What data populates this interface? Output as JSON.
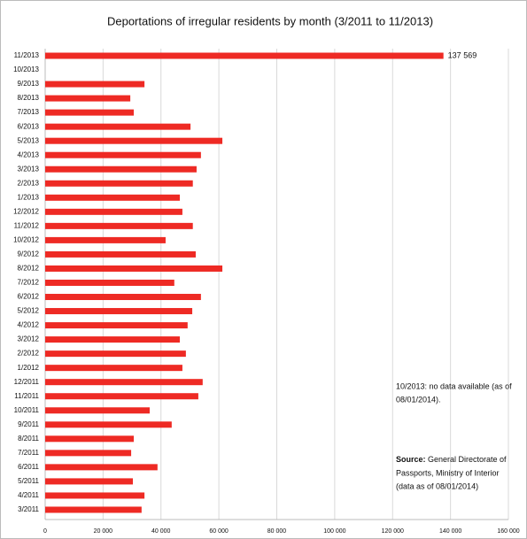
{
  "chart_data": {
    "type": "bar",
    "orientation": "horizontal",
    "title": "Deportations of irregular residents by month (3/2011 to 11/2013)",
    "categories": [
      "11/2013",
      "10/2013",
      "9/2013",
      "8/2013",
      "7/2013",
      "6/2013",
      "5/2013",
      "4/2013",
      "3/2013",
      "2/2013",
      "1/2013",
      "12/2012",
      "11/2012",
      "10/2012",
      "9/2012",
      "8/2012",
      "7/2012",
      "6/2012",
      "5/2012",
      "4/2012",
      "3/2012",
      "2/2012",
      "1/2012",
      "12/2011",
      "11/2011",
      "10/2011",
      "9/2011",
      "8/2011",
      "7/2011",
      "6/2011",
      "5/2011",
      "4/2011",
      "3/2011"
    ],
    "values": [
      137569,
      null,
      34300,
      29400,
      30600,
      50200,
      61200,
      53800,
      52300,
      51000,
      46500,
      47400,
      51000,
      41600,
      52000,
      61200,
      44600,
      53800,
      50800,
      49200,
      46500,
      48600,
      47400,
      54400,
      52900,
      36100,
      43700,
      30600,
      29700,
      38800,
      30300,
      34300,
      33300
    ],
    "value_labels": [
      "137 569",
      null,
      null,
      null,
      null,
      null,
      null,
      null,
      null,
      null,
      null,
      null,
      null,
      null,
      null,
      null,
      null,
      null,
      null,
      null,
      null,
      null,
      null,
      null,
      null,
      null,
      null,
      null,
      null,
      null,
      null,
      null,
      null
    ],
    "color": "#ee2a24",
    "xlim": [
      0,
      160000
    ],
    "xticks": [
      0,
      {
        "value": 20000,
        "label": "20 000"
      },
      {
        "value": 40000,
        "label": "40 000"
      },
      {
        "value": 60000,
        "label": "60 000"
      },
      {
        "value": 80000,
        "label": "80 000"
      },
      {
        "value": 100000,
        "label": "100 000"
      },
      {
        "value": 120000,
        "label": "120 000"
      },
      {
        "value": 140000,
        "label": "140 000"
      },
      {
        "value": 160000,
        "label": "160 000"
      }
    ],
    "grid": true,
    "note_lines": [
      "10/2013: no data available (as of",
      "08/01/2014)."
    ],
    "source_label": "Source:",
    "source_lines": [
      " General Directorate of",
      "Passports, Ministry of Interior",
      "(data as of 08/01/2014)"
    ]
  }
}
